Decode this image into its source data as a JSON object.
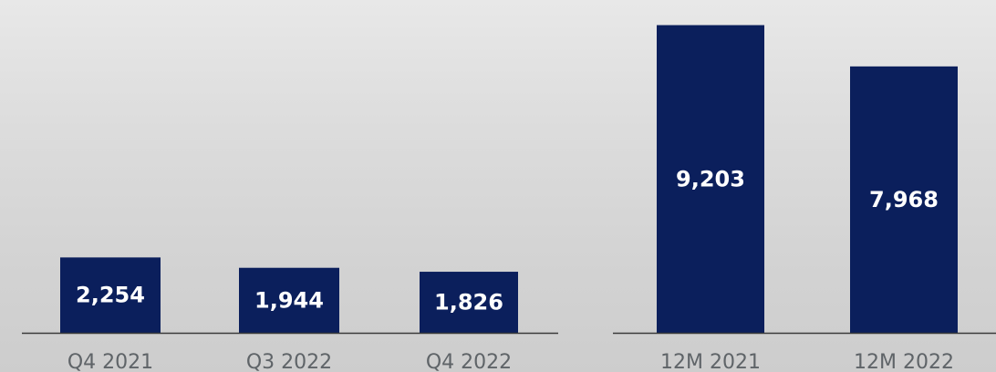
{
  "colors": {
    "bar": "#0b1f5c",
    "bar_label": "#ffffff",
    "category_label": "#5f6468",
    "axis_line": "#3a3a3a"
  },
  "chart_data": [
    {
      "type": "bar",
      "categories": [
        "Q4 2021",
        "Q3 2022",
        "Q4 2022"
      ],
      "values": [
        2254,
        1944,
        1826
      ],
      "value_labels": [
        "2,254",
        "1,944",
        "1,826"
      ],
      "title": "",
      "xlabel": "",
      "ylabel": "",
      "ylim": [
        0,
        9600
      ],
      "grid": false
    },
    {
      "type": "bar",
      "categories": [
        "12M 2021",
        "12M 2022"
      ],
      "values": [
        9203,
        7968
      ],
      "value_labels": [
        "9,203",
        "7,968"
      ],
      "title": "",
      "xlabel": "",
      "ylabel": "",
      "ylim": [
        0,
        9600
      ],
      "grid": false
    }
  ]
}
